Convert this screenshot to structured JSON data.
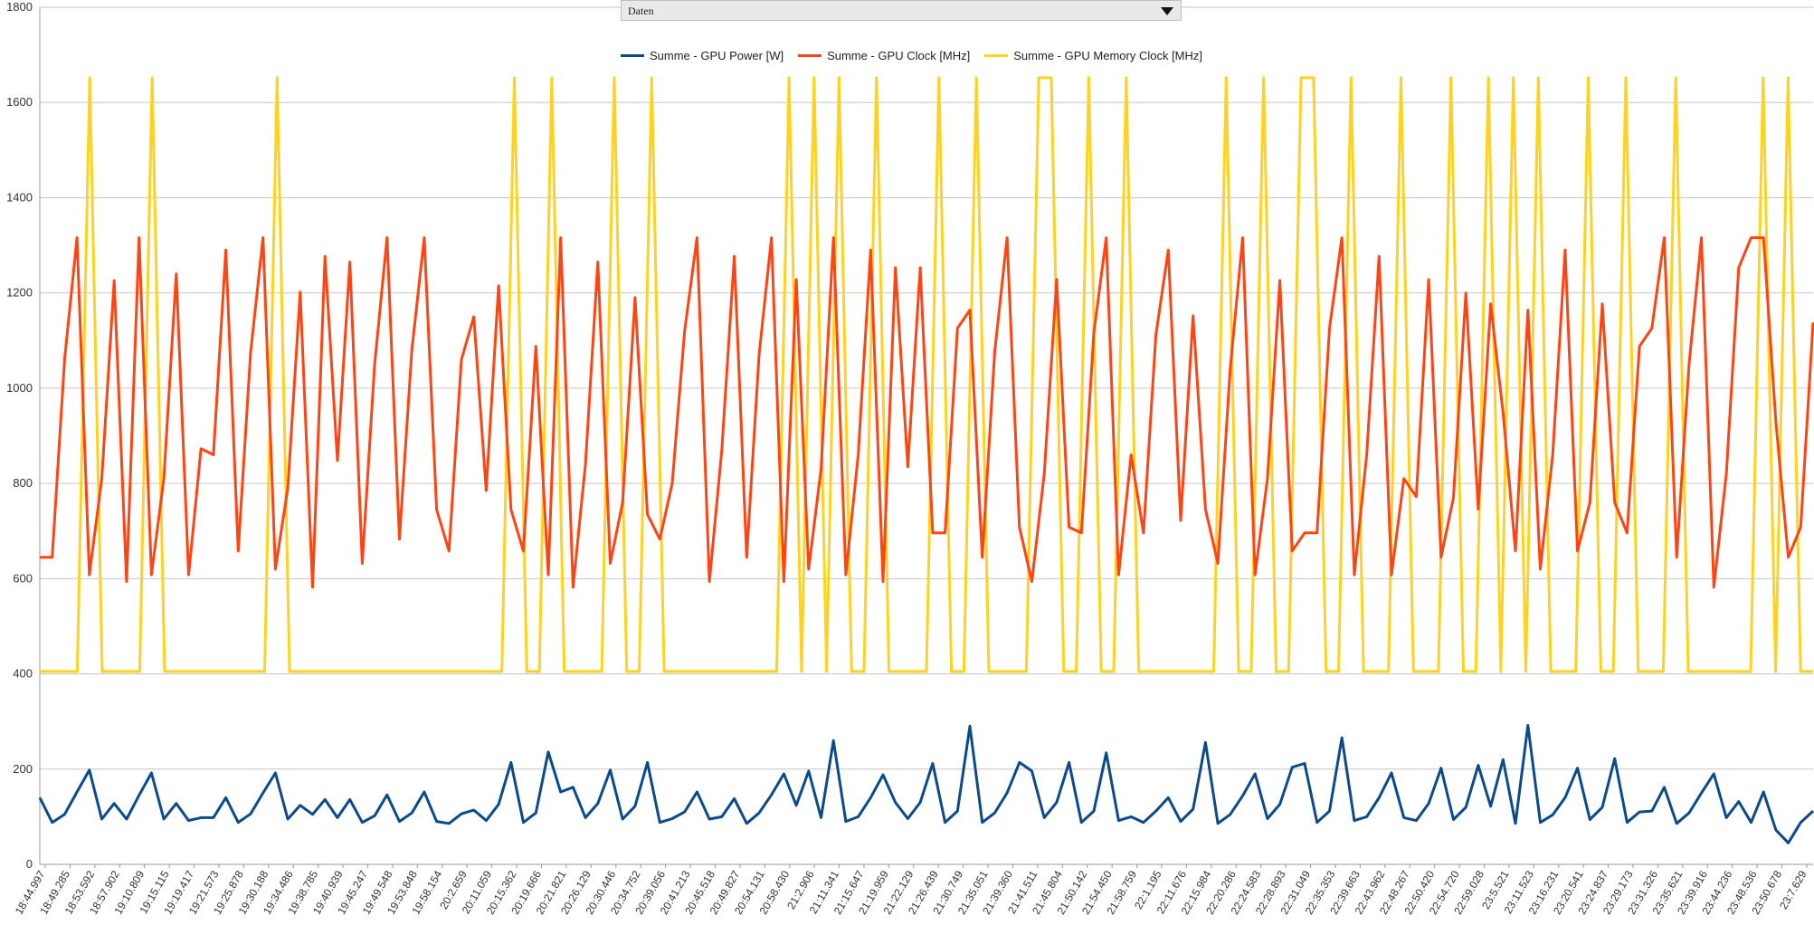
{
  "dropdown": {
    "label": "Daten"
  },
  "colors": {
    "power": "#0b4a8b",
    "clock": "#ff4413",
    "memory": "#ffd21f",
    "grid": "#c6c6c6",
    "axis": "#999999"
  },
  "chart_data": {
    "type": "line",
    "title": "",
    "xlabel": "",
    "ylabel": "",
    "ylim": [
      0,
      1800
    ],
    "yticks": [
      0,
      200,
      400,
      600,
      800,
      1000,
      1200,
      1400,
      1600,
      1800
    ],
    "grid": true,
    "legend_position": "top-center",
    "x_tick_labels": [
      "18:44.997",
      "18:49.285",
      "18:53.592",
      "18:57.902",
      "19:10.809",
      "19:15.115",
      "19:19.417",
      "19:21.573",
      "19:25.878",
      "19:30.188",
      "19:34.486",
      "19:38.785",
      "19:40.939",
      "19:45.247",
      "19:49.548",
      "19:53.848",
      "19:58.154",
      "20:2.659",
      "20:11.059",
      "20:15.362",
      "20:19.666",
      "20:21.821",
      "20:26.129",
      "20:30.446",
      "20:34.752",
      "20:39.056",
      "20:41.213",
      "20:45.518",
      "20:49.827",
      "20:54.131",
      "20:58.430",
      "21:2.906",
      "21:11.341",
      "21:15.647",
      "21:19.959",
      "21:22.129",
      "21:26.439",
      "21:30.749",
      "21:35.051",
      "21:39.360",
      "21:41.511",
      "21:45.804",
      "21:50.142",
      "21:54.450",
      "21:58.759",
      "22:1.195",
      "22:11.676",
      "22:15.984",
      "22:20.286",
      "22:24.583",
      "22:28.893",
      "22:31.049",
      "22:35.353",
      "22:39.663",
      "22:43.962",
      "22:48.267",
      "22:50.420",
      "22:54.720",
      "22:59.028",
      "23:5.521",
      "23:11.523",
      "23:16.231",
      "23:20.541",
      "23:24.837",
      "23:29.173",
      "23:31.326",
      "23:35.621",
      "23:39.916",
      "23:44.236",
      "23:48.536",
      "23:50.678",
      "23:7.629"
    ],
    "series": [
      {
        "name": "Summe - GPU Power [W]",
        "values": [
          140,
          88,
          105,
          152,
          198,
          95,
          128,
          95,
          145,
          192,
          95,
          128,
          92,
          98,
          98,
          140,
          88,
          106,
          150,
          192,
          95,
          124,
          105,
          136,
          98,
          136,
          88,
          102,
          146,
          90,
          108,
          152,
          90,
          86,
          106,
          114,
          92,
          126,
          214,
          88,
          108,
          236,
          152,
          162,
          98,
          128,
          198,
          95,
          122,
          214,
          88,
          96,
          110,
          152,
          95,
          100,
          138,
          86,
          108,
          146,
          190,
          124,
          196,
          98,
          260,
          90,
          100,
          140,
          188,
          130,
          96,
          130,
          212,
          88,
          112,
          290,
          88,
          108,
          150,
          214,
          196,
          98,
          130,
          214,
          88,
          112,
          234,
          92,
          100,
          88,
          112,
          140,
          90,
          116,
          256,
          86,
          105,
          144,
          190,
          96,
          126,
          204,
          212,
          88,
          112,
          266,
          92,
          100,
          140,
          192,
          98,
          92,
          128,
          202,
          94,
          120,
          208,
          122,
          220,
          86,
          292,
          88,
          104,
          140,
          202,
          94,
          120,
          222,
          88,
          110,
          112,
          162,
          86,
          108,
          150,
          190,
          98,
          132,
          88,
          152,
          72,
          45,
          88,
          112
        ]
      },
      {
        "name": "Summe - GPU Clock [MHz]",
        "values": [
          645,
          645,
          1060,
          1316,
          608,
          810,
          1226,
          594,
          1316,
          608,
          810,
          1240,
          608,
          873,
          860,
          1290,
          658,
          1075,
          1316,
          620,
          790,
          1202,
          582,
          1277,
          848,
          1265,
          632,
          1050,
          1316,
          683,
          1080,
          1316,
          745,
          658,
          1060,
          1150,
          785,
          1215,
          745,
          658,
          1088,
          608,
          1316,
          582,
          840,
          1265,
          632,
          760,
          1190,
          735,
          683,
          800,
          1120,
          1316,
          594,
          870,
          1277,
          645,
          1070,
          1316,
          594,
          1228,
          620,
          830,
          1316,
          608,
          860,
          1290,
          594,
          1253,
          835,
          1253,
          696,
          696,
          1126,
          1164,
          645,
          1075,
          1316,
          708,
          594,
          820,
          1228,
          708,
          696,
          1116,
          1316,
          608,
          860,
          696,
          1112,
          1290,
          722,
          1152,
          746,
          632,
          1042,
          1316,
          608,
          810,
          1226,
          658,
          696,
          696,
          1126,
          1316,
          608,
          860,
          1277,
          608,
          810,
          772,
          1228,
          645,
          770,
          1200,
          746,
          1177,
          949,
          658,
          1164,
          620,
          860,
          1290,
          658,
          760,
          1177,
          760,
          696,
          1088,
          1126,
          1316,
          645,
          1050,
          1316,
          582,
          820,
          1253,
          1316,
          1316,
          928,
          645,
          708,
          1138
        ]
      },
      {
        "name": "Summe - GPU Memory Clock [MHz]",
        "values": [
          405,
          405,
          405,
          405,
          1652,
          405,
          405,
          405,
          405,
          1652,
          405,
          405,
          405,
          405,
          405,
          405,
          405,
          405,
          405,
          1652,
          405,
          405,
          405,
          405,
          405,
          405,
          405,
          405,
          405,
          405,
          405,
          405,
          405,
          405,
          405,
          405,
          405,
          405,
          1652,
          405,
          405,
          1652,
          405,
          405,
          405,
          405,
          1652,
          405,
          405,
          1652,
          405,
          405,
          405,
          405,
          405,
          405,
          405,
          405,
          405,
          405,
          1652,
          405,
          1652,
          405,
          1652,
          405,
          405,
          1652,
          405,
          405,
          405,
          405,
          1652,
          405,
          405,
          1652,
          405,
          405,
          405,
          405,
          1652,
          1652,
          405,
          405,
          1652,
          405,
          405,
          1652,
          405,
          405,
          405,
          405,
          405,
          405,
          405,
          1652,
          405,
          405,
          1652,
          405,
          405,
          1652,
          1652,
          405,
          405,
          1652,
          405,
          405,
          405,
          1652,
          405,
          405,
          405,
          1652,
          405,
          405,
          1652,
          405,
          1652,
          405,
          1652,
          405,
          405,
          405,
          1652,
          405,
          405,
          1652,
          405,
          405,
          405,
          1652,
          405,
          405,
          405,
          405,
          405,
          405,
          1652,
          405,
          1652,
          405,
          405
        ]
      }
    ]
  }
}
